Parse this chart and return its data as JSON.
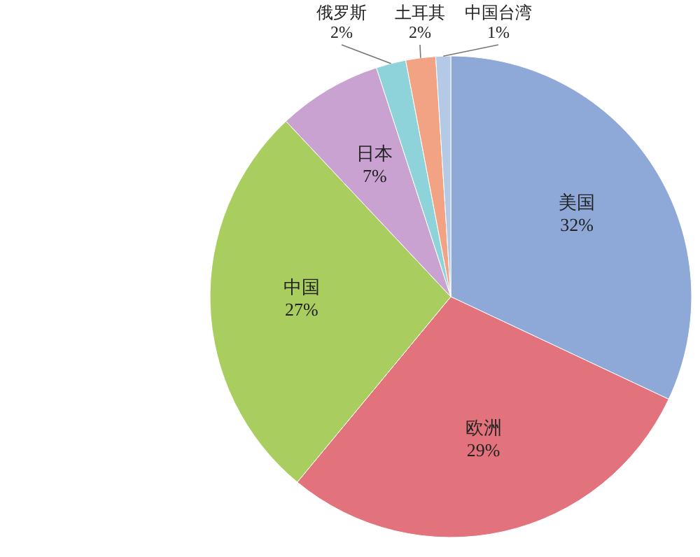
{
  "chart_data": {
    "type": "pie",
    "categories": [
      "美国",
      "欧洲",
      "中国",
      "日本",
      "俄罗斯",
      "土耳其",
      "中国台湾"
    ],
    "values": [
      32,
      29,
      27,
      7,
      2,
      2,
      1
    ],
    "colors": [
      "#8ea8d8",
      "#e2727c",
      "#a9cd5e",
      "#c9a2d2",
      "#8fd3da",
      "#f2a383",
      "#b3c9e6"
    ],
    "value_labels": [
      "32%",
      "29%",
      "27%",
      "7%",
      "2%",
      "2%",
      "1%"
    ]
  }
}
